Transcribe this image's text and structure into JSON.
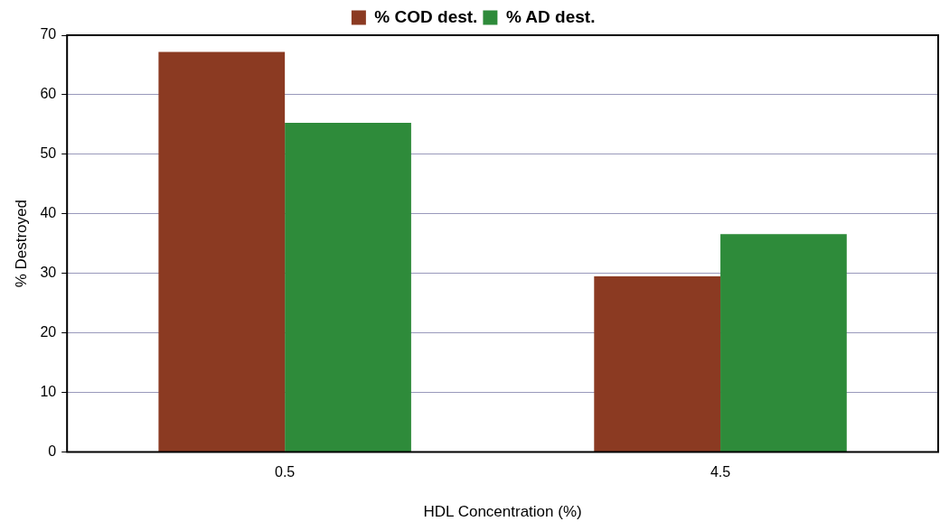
{
  "chart_data": {
    "type": "bar",
    "categories": [
      "0.5",
      "4.5"
    ],
    "series": [
      {
        "name": "% COD dest.",
        "color": "#8b3a22",
        "values": [
          67.2,
          29.5
        ]
      },
      {
        "name": "% AD dest.",
        "color": "#2e8b3a",
        "values": [
          55.3,
          36.6
        ]
      }
    ],
    "xlabel": "HDL Concentration (%)",
    "ylabel": "% Destroyed",
    "ylim": [
      0,
      70
    ],
    "yticks": [
      0,
      10,
      20,
      30,
      40,
      50,
      60,
      70
    ],
    "grid": "y",
    "legend": "top"
  }
}
